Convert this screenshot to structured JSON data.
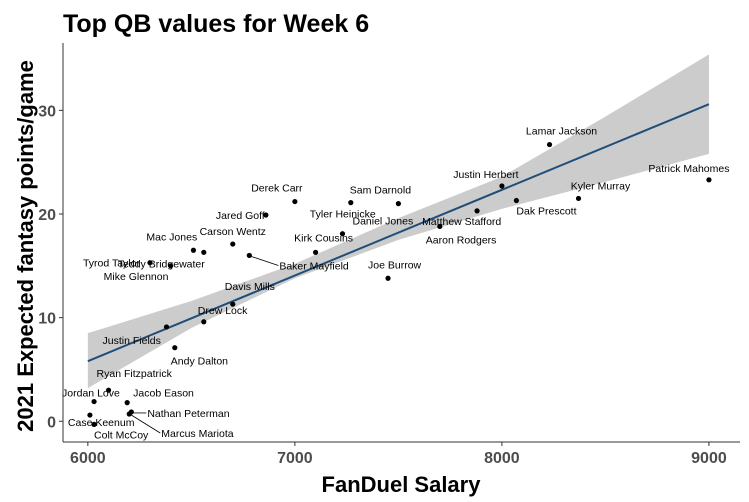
{
  "chart_data": {
    "type": "scatter",
    "title": "Top QB values for Week 6",
    "xlabel": "FanDuel Salary",
    "ylabel": "2021 Expected fantasy points/game",
    "xlim": [
      5880,
      9150
    ],
    "ylim": [
      -2,
      36.5
    ],
    "x_ticks": [
      6000,
      7000,
      8000,
      9000
    ],
    "y_ticks": [
      0,
      10,
      20,
      30
    ],
    "x_tick_labels": [
      "6000",
      "7000",
      "8000",
      "9000"
    ],
    "y_tick_labels": [
      "0",
      "10",
      "20",
      "30"
    ],
    "grid": false,
    "legend": "none",
    "colors": {
      "points": "#000000",
      "trend_line": "#1f4e79",
      "confidence_band": "#cccccc",
      "axis": "#333333"
    },
    "points": [
      {
        "name": "Lamar Jackson",
        "x": 8230,
        "y": 26.7
      },
      {
        "name": "Patrick Mahomes",
        "x": 9000,
        "y": 23.3
      },
      {
        "name": "Justin Herbert",
        "x": 8000,
        "y": 22.7
      },
      {
        "name": "Kyler Murray",
        "x": 8370,
        "y": 21.5
      },
      {
        "name": "Dak Prescott",
        "x": 8070,
        "y": 21.3
      },
      {
        "name": "Derek Carr",
        "x": 7000,
        "y": 21.2
      },
      {
        "name": "Tyler Heinicke",
        "x": 7270,
        "y": 21.1
      },
      {
        "name": "Sam Darnold",
        "x": 7500,
        "y": 21.0
      },
      {
        "name": "Matthew Stafford",
        "x": 7880,
        "y": 20.3
      },
      {
        "name": "Jared Goff",
        "x": 6860,
        "y": 19.9
      },
      {
        "name": "Aaron Rodgers",
        "x": 7700,
        "y": 18.8
      },
      {
        "name": "Daniel Jones",
        "x": 7230,
        "y": 18.1
      },
      {
        "name": "Carson Wentz",
        "x": 6700,
        "y": 17.1
      },
      {
        "name": "Mac Jones",
        "x": 6510,
        "y": 16.5
      },
      {
        "name": "Kirk Cousins",
        "x": 7100,
        "y": 16.3
      },
      {
        "name": "Teddy Bridgewater",
        "x": 6560,
        "y": 16.3
      },
      {
        "name": "Baker Mayfield",
        "x": 6780,
        "y": 16.0
      },
      {
        "name": "Tyrod Taylor",
        "x": 6300,
        "y": 15.3
      },
      {
        "name": "Mike Glennon",
        "x": 6400,
        "y": 15.0
      },
      {
        "name": "Joe Burrow",
        "x": 7450,
        "y": 13.8
      },
      {
        "name": "Davis Mills",
        "x": 6700,
        "y": 11.3
      },
      {
        "name": "Drew Lock",
        "x": 6560,
        "y": 9.6
      },
      {
        "name": "Justin Fields",
        "x": 6380,
        "y": 9.1
      },
      {
        "name": "Andy Dalton",
        "x": 6420,
        "y": 7.1
      },
      {
        "name": "Ryan Fitzpatrick",
        "x": 6100,
        "y": 3.0
      },
      {
        "name": "Jordan Love",
        "x": 6030,
        "y": 1.9
      },
      {
        "name": "Jacob Eason",
        "x": 6190,
        "y": 1.8
      },
      {
        "name": "Case Keenum",
        "x": 6010,
        "y": 0.6
      },
      {
        "name": "Nathan Peterman",
        "x": 6210,
        "y": 0.9
      },
      {
        "name": "Marcus Mariota",
        "x": 6200,
        "y": 0.7
      },
      {
        "name": "Colt McCoy",
        "x": 6030,
        "y": -0.3
      }
    ],
    "trend_line": {
      "x": [
        6000,
        9000
      ],
      "y": [
        5.8,
        30.6
      ]
    },
    "confidence_band": {
      "x": [
        6000,
        6500,
        7000,
        7500,
        8000,
        8500,
        9000
      ],
      "lower": [
        3.2,
        9.0,
        13.8,
        17.5,
        20.5,
        23.1,
        25.8
      ],
      "upper": [
        8.5,
        11.6,
        15.2,
        19.6,
        23.6,
        29.4,
        35.4
      ]
    }
  }
}
